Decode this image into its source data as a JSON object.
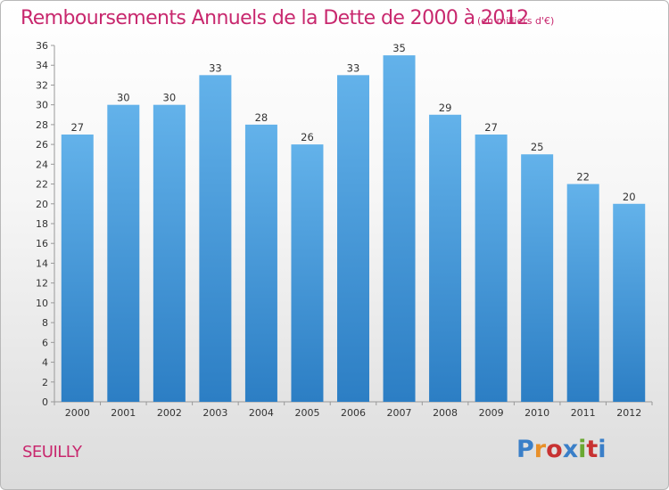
{
  "title": "Remboursements Annuels de la Dette de 2000 à 2012",
  "subtitle": "(en milliers d'€)",
  "commune": "SEUILLY",
  "logo": {
    "text": "Proxiti",
    "colors": [
      "#3a7fc8",
      "#e8902a",
      "#c83232",
      "#3a7fc8",
      "#6aa832",
      "#c83232",
      "#3a7fc8"
    ]
  },
  "colors": {
    "bar_top": "#63b2ea",
    "bar_bottom": "#2c7ec4",
    "title": "#c8286e"
  },
  "chart_data": {
    "type": "bar",
    "categories": [
      "2000",
      "2001",
      "2002",
      "2003",
      "2004",
      "2005",
      "2006",
      "2007",
      "2008",
      "2009",
      "2010",
      "2011",
      "2012"
    ],
    "values": [
      27,
      30,
      30,
      33,
      28,
      26,
      33,
      35,
      29,
      27,
      25,
      22,
      20
    ],
    "ylim": [
      0,
      36
    ],
    "yticks": [
      0,
      2,
      4,
      6,
      8,
      10,
      12,
      14,
      16,
      18,
      20,
      22,
      24,
      26,
      28,
      30,
      32,
      34,
      36
    ],
    "grid": false,
    "legend": "none"
  }
}
